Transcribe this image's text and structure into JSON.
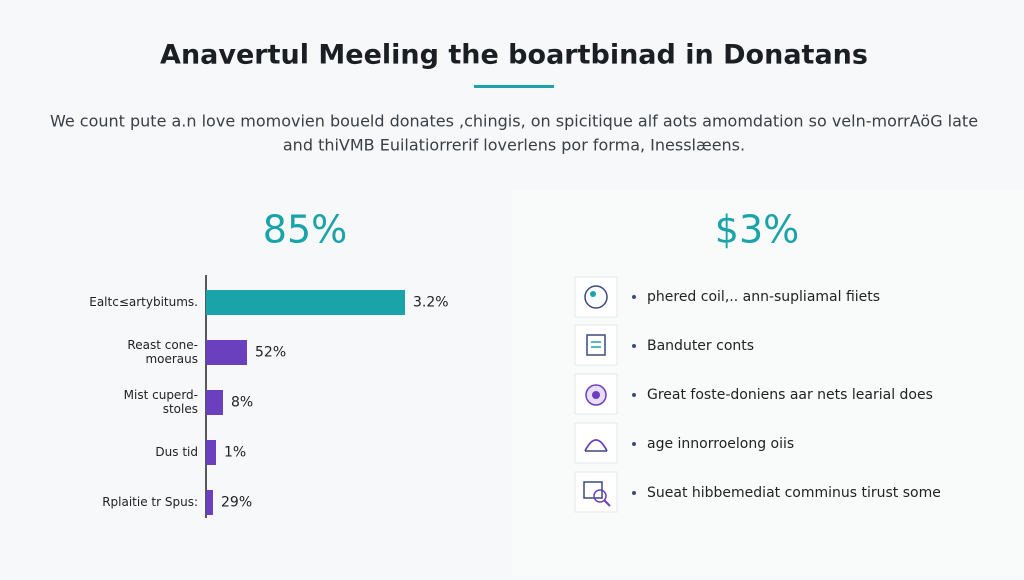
{
  "header": {
    "title": "Anavertul Meeling the boartbinad in Donatans",
    "intro": [
      "We count pute a.n love momovien boueld donates ,chingis, on spicitique alf aots amomdation so veln-morrAöG late",
      "and thiVMB Euilatiorrerif loverlens por forma, Inesslæens."
    ]
  },
  "left_panel": {
    "stat": "85%",
    "rows": [
      {
        "label": [
          "Ealtc≤artybitums."
        ],
        "value": "3.2%"
      },
      {
        "label": [
          "Reast cone-",
          "moeraus"
        ],
        "value": "52%"
      },
      {
        "label": [
          "Mist cuperd-",
          "stoles"
        ],
        "value": "8%"
      },
      {
        "label": [
          "Dus tid"
        ],
        "value": "1%"
      },
      {
        "label": [
          "Rplaitie tr Spus:"
        ],
        "value": "29%"
      }
    ]
  },
  "right_panel": {
    "stat": "$3%",
    "items": [
      "phered coil,.. ann-supliamal fiiets",
      "Banduter conts",
      "Great foste-doniens aar nets learial does",
      "age innorroelong oiis",
      "Sueat hibbemediat comminus tirust some"
    ]
  }
}
